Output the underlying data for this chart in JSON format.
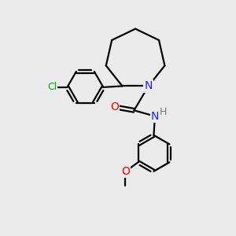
{
  "background_color": "#ebebeb",
  "line_color": "#000000",
  "line_width": 1.6,
  "atom_colors": {
    "N": "#2020ff",
    "O": "#ff0000",
    "Cl": "#00aa00",
    "C": "#000000"
  },
  "font_size": 8.5,
  "fig_size": [
    3.0,
    3.0
  ],
  "dpi": 100
}
